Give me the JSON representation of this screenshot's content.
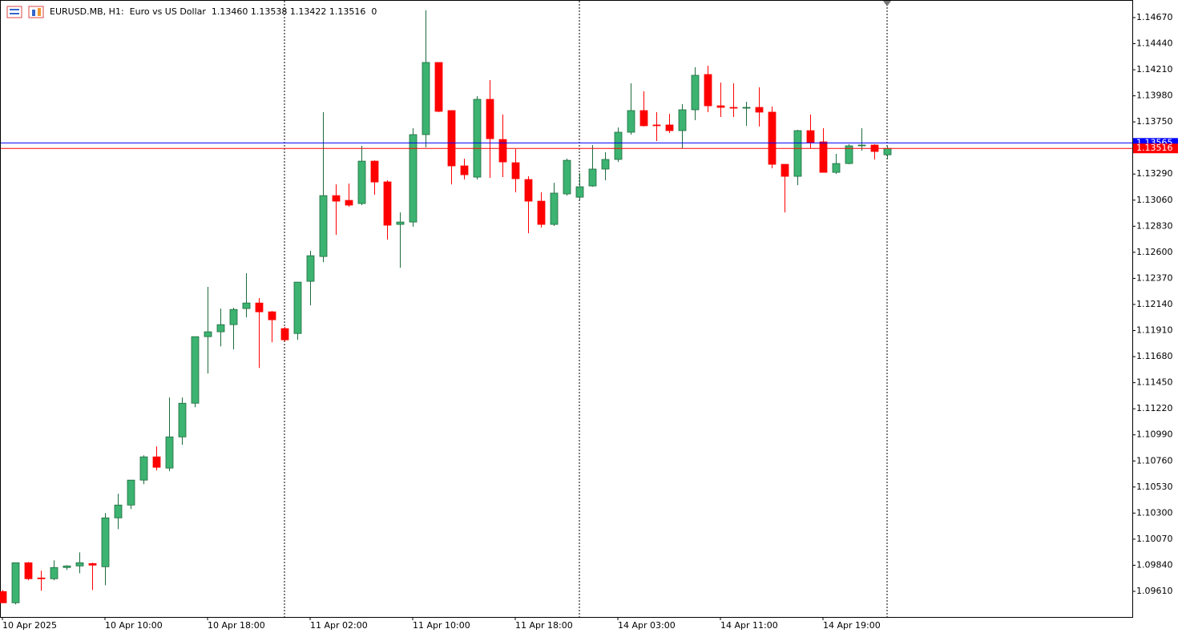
{
  "chart_data": {
    "type": "candlestick",
    "title": "EURUSD.MB, H1:  Euro vs US Dollar  1.13460 1.13538 1.13422 1.13516  0",
    "categories": [
      "10 Apr 2025",
      null,
      null,
      null,
      null,
      null,
      null,
      null,
      "10 Apr 10:00",
      null,
      null,
      null,
      null,
      null,
      null,
      null,
      "10 Apr 18:00",
      null,
      null,
      null,
      null,
      null,
      null,
      null,
      "11 Apr 02:00",
      null,
      null,
      null,
      null,
      null,
      null,
      null,
      "11 Apr 10:00",
      null,
      null,
      null,
      null,
      null,
      null,
      null,
      "11 Apr 18:00",
      null,
      null,
      null,
      null,
      null,
      null,
      null,
      "14 Apr 03:00",
      null,
      null,
      null,
      null,
      null,
      null,
      null,
      "14 Apr 11:00",
      null,
      null,
      null,
      null,
      null,
      null,
      null,
      "14 Apr 19:00",
      null,
      null,
      null,
      null,
      null
    ],
    "open": [
      1.09608,
      1.09509,
      1.09862,
      1.09728,
      1.09721,
      1.0982,
      1.09834,
      1.09855,
      1.09827,
      1.10258,
      1.10371,
      1.10591,
      1.10796,
      1.10697,
      1.10972,
      1.11269,
      1.11856,
      1.11899,
      1.11962,
      1.12104,
      1.12153,
      1.12075,
      1.11927,
      1.11884,
      1.12344,
      1.12563,
      1.131,
      1.13058,
      1.1303,
      1.13404,
      1.13221,
      1.12846,
      1.12867,
      1.13638,
      1.14274,
      1.1385,
      1.13362,
      1.13263,
      1.13949,
      1.13595,
      1.1339,
      1.13242,
      1.13051,
      1.12846,
      1.13115,
      1.13086,
      1.13185,
      1.13334,
      1.13419,
      1.13659,
      1.1385,
      1.13723,
      1.13723,
      1.13673,
      1.13857,
      1.14168,
      1.13892,
      1.13878,
      1.13871,
      1.13878,
      1.13836,
      1.13376,
      1.1327,
      1.13673,
      1.13574,
      1.13305,
      1.13383,
      1.13539,
      1.13546,
      1.1346
    ],
    "high": [
      1.09622,
      1.09862,
      1.09869,
      1.09792,
      1.09883,
      1.09841,
      1.09954,
      1.09862,
      1.10301,
      1.1047,
      1.10591,
      1.1081,
      1.10888,
      1.11319,
      1.11319,
      1.11856,
      1.12295,
      1.12104,
      1.12111,
      1.12415,
      1.12196,
      1.12082,
      1.11941,
      1.12337,
      1.12613,
      1.13836,
      1.13199,
      1.13206,
      1.13539,
      1.13411,
      1.13235,
      1.12952,
      1.13694,
      1.14734,
      1.14274,
      1.1385,
      1.13426,
      1.13977,
      1.14118,
      1.13815,
      1.13511,
      1.1327,
      1.13129,
      1.13213,
      1.13426,
      1.13298,
      1.13546,
      1.13482,
      1.13701,
      1.1409,
      1.1402,
      1.13836,
      1.13821,
      1.13906,
      1.14232,
      1.14246,
      1.14097,
      1.1409,
      1.13928,
      1.14055,
      1.13885,
      1.13376,
      1.1368,
      1.13815,
      1.13694,
      1.13468,
      1.13553,
      1.13694,
      1.13553,
      1.13538
    ],
    "low": [
      1.09509,
      1.09495,
      1.09707,
      1.09615,
      1.09707,
      1.09799,
      1.0977,
      1.09622,
      1.09664,
      1.10159,
      1.10336,
      1.10555,
      1.10676,
      1.10669,
      1.10902,
      1.11234,
      1.11531,
      1.11771,
      1.11743,
      1.12026,
      1.1158,
      1.11807,
      1.11814,
      1.11828,
      1.12132,
      1.12513,
      1.12754,
      1.13001,
      1.13016,
      1.13107,
      1.12712,
      1.12464,
      1.12825,
      1.13525,
      1.13836,
      1.13199,
      1.13242,
      1.13242,
      1.13256,
      1.13263,
      1.13129,
      1.12768,
      1.12818,
      1.12832,
      1.13101,
      1.13058,
      1.13178,
      1.13235,
      1.13397,
      1.13638,
      1.13709,
      1.13581,
      1.13652,
      1.13518,
      1.13765,
      1.13836,
      1.13793,
      1.13793,
      1.13716,
      1.13709,
      1.13341,
      1.12952,
      1.13192,
      1.13518,
      1.13305,
      1.13291,
      1.13376,
      1.13496,
      1.13419,
      1.13422
    ],
    "close": [
      1.09509,
      1.09862,
      1.09721,
      1.09721,
      1.0982,
      1.09834,
      1.09862,
      1.09841,
      1.10258,
      1.10371,
      1.10591,
      1.10796,
      1.10704,
      1.10972,
      1.11269,
      1.11856,
      1.11899,
      1.11962,
      1.12096,
      1.12153,
      1.12075,
      1.12005,
      1.11828,
      1.12337,
      1.1257,
      1.131,
      1.13051,
      1.13016,
      1.13404,
      1.1322,
      1.12839,
      1.12867,
      1.13638,
      1.14274,
      1.13843,
      1.13362,
      1.13284,
      1.13949,
      1.13602,
      1.13397,
      1.13249,
      1.13051,
      1.12846,
      1.13122,
      1.13411,
      1.13178,
      1.13334,
      1.13419,
      1.13659,
      1.1385,
      1.13716,
      1.13716,
      1.13673,
      1.13857,
      1.14161,
      1.13892,
      1.13878,
      1.13871,
      1.13878,
      1.13836,
      1.13376,
      1.1327,
      1.13673,
      1.13567,
      1.13305,
      1.13383,
      1.13539,
      1.13546,
      1.13489,
      1.13516
    ],
    "up_color": "#3cb371",
    "down_color": "#ff0000",
    "ylim": [
      1.09384,
      1.14825
    ],
    "yticks": [
      {
        "value": 1.1467,
        "label": "1.14670"
      },
      {
        "value": 1.1444,
        "label": "1.14440"
      },
      {
        "value": 1.1421,
        "label": "1.14210"
      },
      {
        "value": 1.1398,
        "label": "1.13980"
      },
      {
        "value": 1.1375,
        "label": "1.13750"
      },
      {
        "value": 1.1329,
        "label": "1.13290"
      },
      {
        "value": 1.1306,
        "label": "1.13060"
      },
      {
        "value": 1.1283,
        "label": "1.12830"
      },
      {
        "value": 1.126,
        "label": "1.12600"
      },
      {
        "value": 1.1237,
        "label": "1.12370"
      },
      {
        "value": 1.1214,
        "label": "1.12140"
      },
      {
        "value": 1.1191,
        "label": "1.11910"
      },
      {
        "value": 1.1168,
        "label": "1.11680"
      },
      {
        "value": 1.1145,
        "label": "1.11450"
      },
      {
        "value": 1.1122,
        "label": "1.11220"
      },
      {
        "value": 1.1099,
        "label": "1.10990"
      },
      {
        "value": 1.1076,
        "label": "1.10760"
      },
      {
        "value": 1.1053,
        "label": "1.10530"
      },
      {
        "value": 1.103,
        "label": "1.10300"
      },
      {
        "value": 1.1007,
        "label": "1.10070"
      },
      {
        "value": 1.0984,
        "label": "1.09840"
      },
      {
        "value": 1.0961,
        "label": "1.09610"
      }
    ],
    "ask_line": {
      "value": 1.13565,
      "color": "#0000ff"
    },
    "bid_line": {
      "value": 1.13516,
      "color": "#ff0000"
    }
  }
}
